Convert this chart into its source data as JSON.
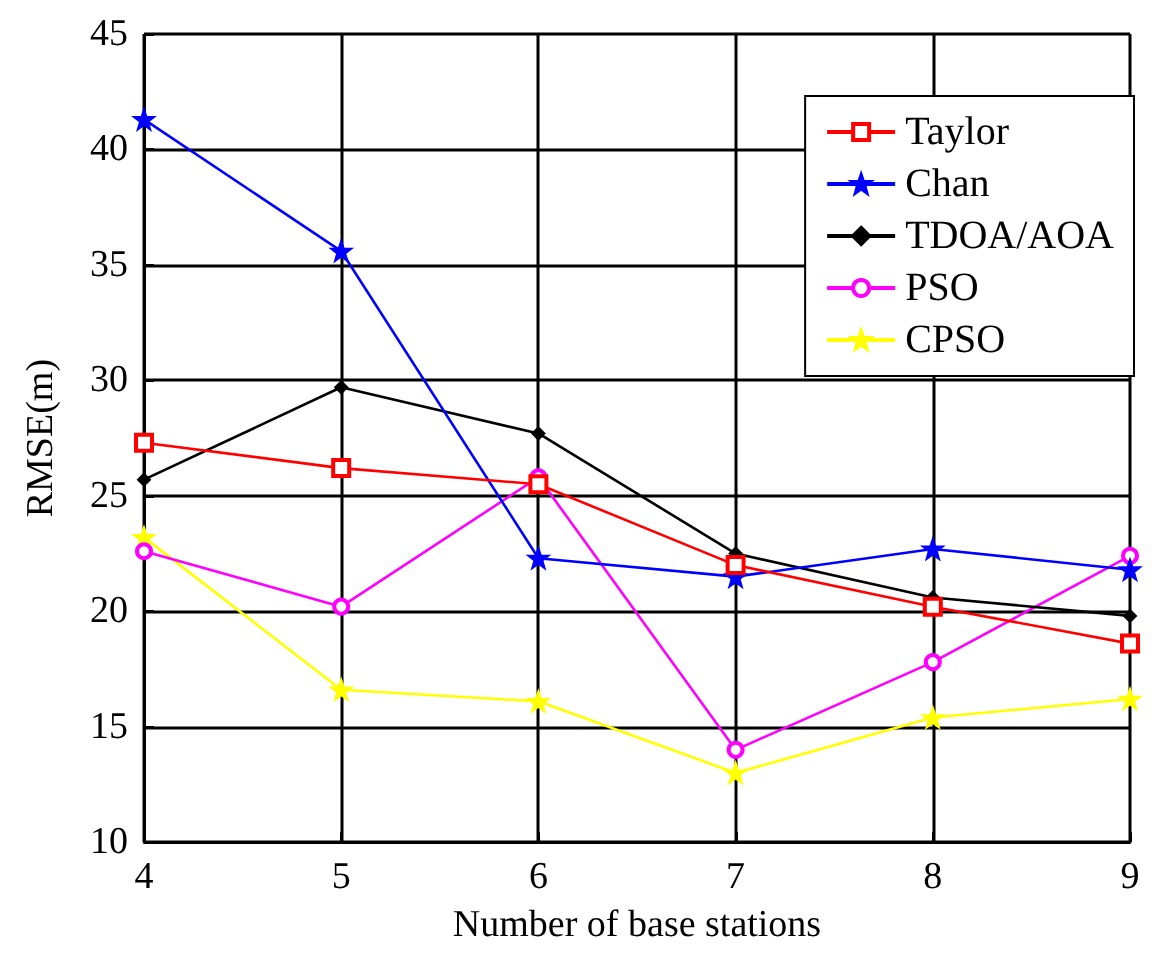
{
  "chart_data": {
    "type": "line",
    "xlabel": "Number of base stations",
    "ylabel": "RMSE(m)",
    "x": [
      4,
      5,
      6,
      7,
      8,
      9
    ],
    "xlim": [
      4,
      9
    ],
    "xticks": [
      4,
      5,
      6,
      7,
      8,
      9
    ],
    "ylim": [
      10,
      45
    ],
    "yticks": [
      10,
      15,
      20,
      25,
      30,
      35,
      40,
      45
    ],
    "grid": true,
    "legend": "top right",
    "line_style": "solid",
    "series": [
      {
        "name": "Taylor",
        "color": "#ff0000",
        "marker": "square",
        "values": [
          27.3,
          26.2,
          25.5,
          22.0,
          20.2,
          18.6
        ]
      },
      {
        "name": "Chan",
        "color": "#0000ff",
        "marker": "star",
        "values": [
          41.3,
          35.6,
          22.3,
          21.5,
          22.7,
          21.8
        ]
      },
      {
        "name": "TDOA/AOA",
        "color": "#000000",
        "marker": "diamond",
        "values": [
          25.7,
          29.7,
          27.7,
          22.5,
          20.6,
          19.8
        ]
      },
      {
        "name": "PSO",
        "color": "#ff00ff",
        "marker": "circle",
        "values": [
          22.6,
          20.2,
          25.8,
          14.0,
          17.8,
          22.4
        ]
      },
      {
        "name": "CPSO",
        "color": "#ffff00",
        "marker": "star",
        "values": [
          23.2,
          16.6,
          16.1,
          13.0,
          15.4,
          16.2
        ]
      }
    ]
  }
}
